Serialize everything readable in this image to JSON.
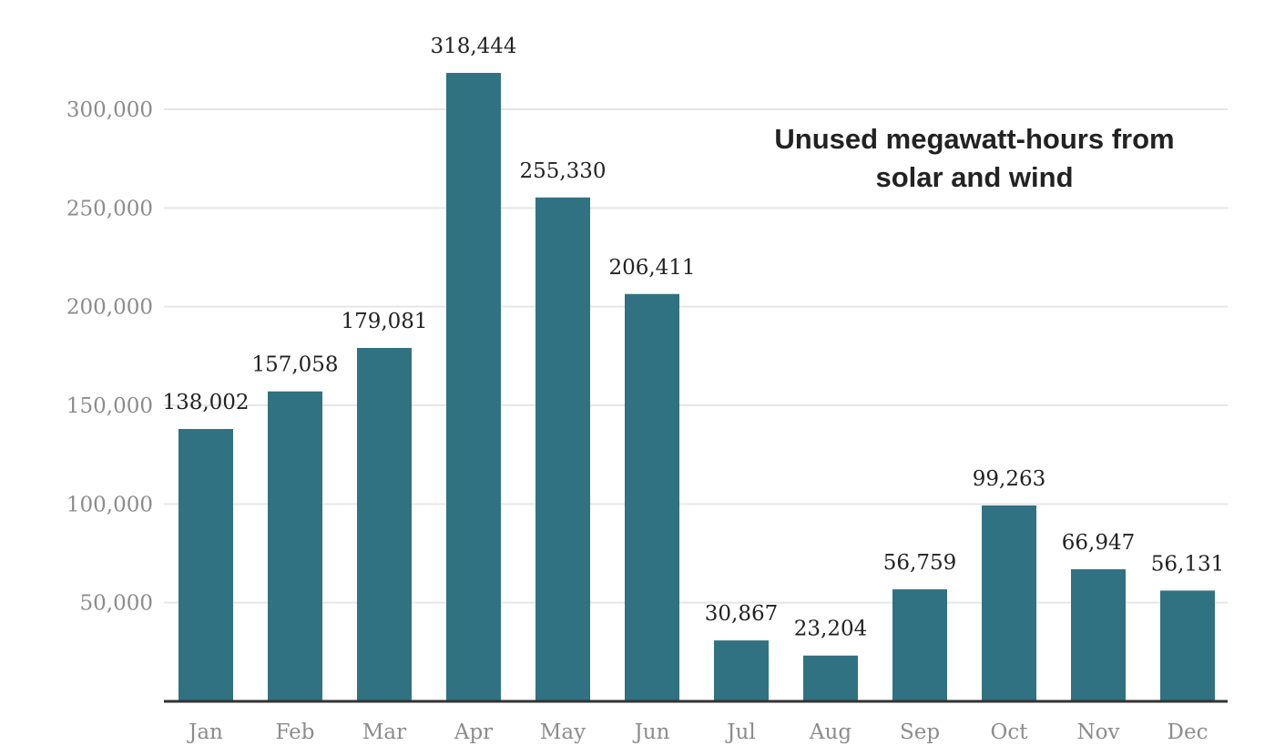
{
  "chart_data": {
    "type": "bar",
    "title_lines": [
      "Unused megawatt-hours from",
      "solar and wind"
    ],
    "xlabel": "",
    "ylabel": "",
    "categories": [
      "Jan",
      "Feb",
      "Mar",
      "Apr",
      "May",
      "Jun",
      "Jul",
      "Aug",
      "Sep",
      "Oct",
      "Nov",
      "Dec"
    ],
    "values": [
      138002,
      157058,
      179081,
      318444,
      255330,
      206411,
      30867,
      23204,
      56759,
      99263,
      66947,
      56131
    ],
    "data_labels": [
      "138,002",
      "157,058",
      "179,081",
      "318,444",
      "255,330",
      "206,411",
      "30,867",
      "23,204",
      "56,759",
      "99,263",
      "66,947",
      "56,131"
    ],
    "ylim": [
      0,
      300000
    ],
    "y_ticks": [
      50000,
      100000,
      150000,
      200000,
      250000,
      300000
    ],
    "y_tick_labels": [
      "50,000",
      "100,000",
      "150,000",
      "200,000",
      "250,000",
      "300,000"
    ],
    "grid": true,
    "colors": {
      "bar": "#307281",
      "grid": "#e6e6e6",
      "axis": "#333333",
      "tick_text": "#8c8c8c",
      "label_text": "#222222",
      "title_text": "#222222"
    }
  }
}
